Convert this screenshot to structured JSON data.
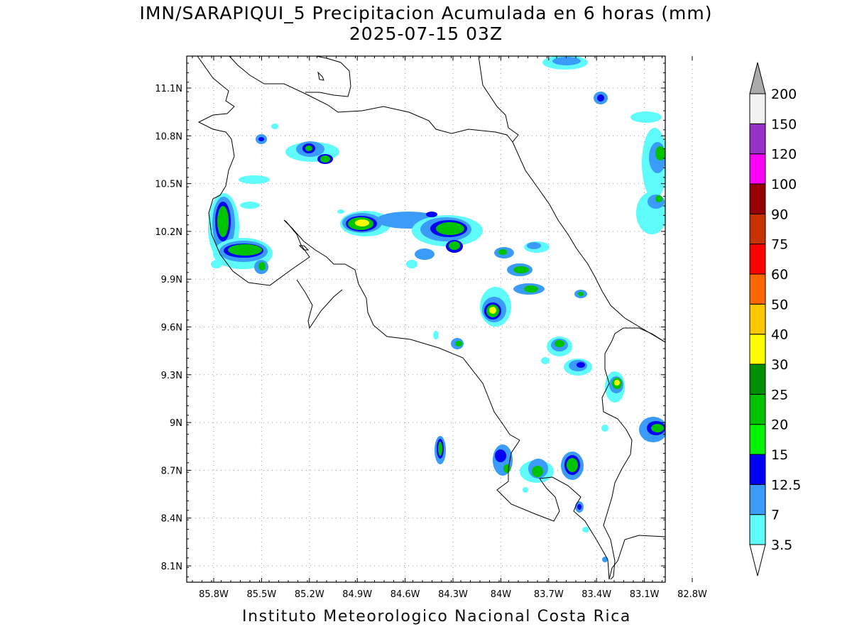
{
  "title": {
    "line1": "IMN/SARAPIQUI_5 Precipitacion Acumulada en 6 horas (mm)",
    "line2": "2025-07-15 03Z"
  },
  "footer": "Instituto Meteorologico Nacional Costa Rica",
  "map": {
    "lon_range": [
      -86.15,
      -82.55
    ],
    "lat_range": [
      8.0,
      11.3
    ],
    "lat_ticks": [
      "11.1N",
      "10.8N",
      "10.5N",
      "10.2N",
      "9.9N",
      "9.6N",
      "9.3N",
      "9N",
      "8.7N",
      "8.4N",
      "8.1N"
    ],
    "lon_ticks": [
      "85.8W",
      "85.5W",
      "85.2W",
      "84.9W",
      "84.6W",
      "84.3W",
      "84W",
      "83.7W",
      "83.4W",
      "83.1W",
      "82.8W"
    ],
    "grid": true
  },
  "legend": {
    "colors": [
      "#5ffbfb",
      "#3a9cf8",
      "#0000f5",
      "#00f400",
      "#00c300",
      "#008f00",
      "#fdfd00",
      "#fdc800",
      "#fd6600",
      "#fd0000",
      "#c83200",
      "#960000",
      "#fd00fd",
      "#9632c8",
      "#f2f2f2",
      "#aaaaaa"
    ],
    "labels": [
      "3.5",
      "7",
      "12.5",
      "15",
      "20",
      "25",
      "30",
      "40",
      "50",
      "60",
      "75",
      "90",
      "100",
      "120",
      "150",
      "200"
    ]
  }
}
